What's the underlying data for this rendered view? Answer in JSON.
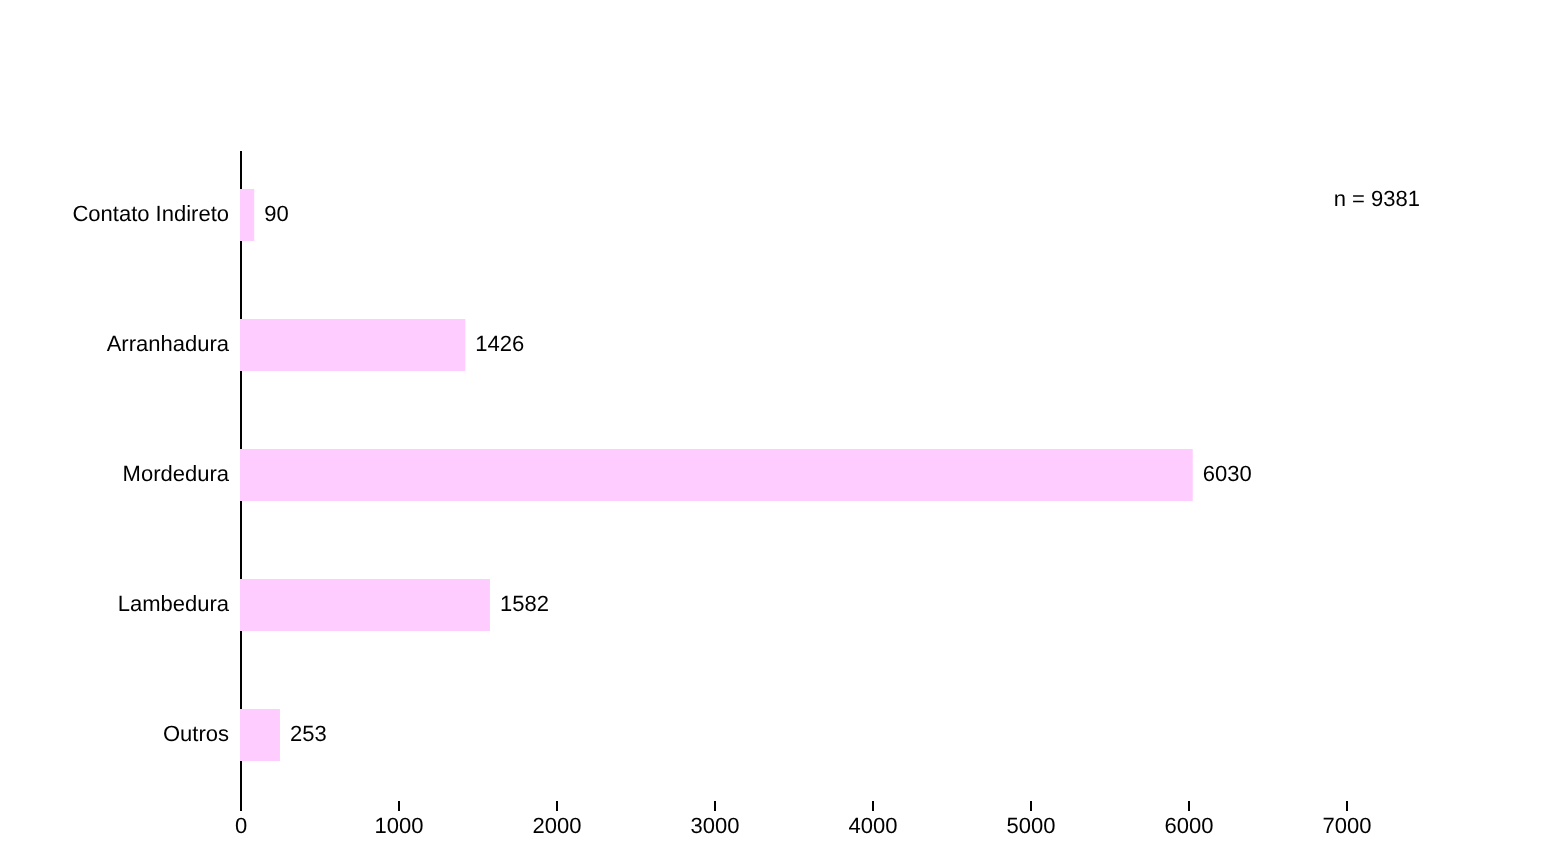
{
  "chart_data": {
    "type": "bar",
    "orientation": "horizontal",
    "categories": [
      "Contato Indireto",
      "Arranhadura",
      "Mordedura",
      "Lambedura",
      "Outros"
    ],
    "values": [
      90,
      1426,
      6030,
      1582,
      253
    ],
    "color": "#ffccff",
    "data_labels": true,
    "grid": false,
    "xlim": [
      0,
      7000
    ],
    "xticks": [
      0,
      1000,
      2000,
      3000,
      4000,
      5000,
      6000,
      7000
    ],
    "annotations": [
      "n = 9381"
    ]
  }
}
